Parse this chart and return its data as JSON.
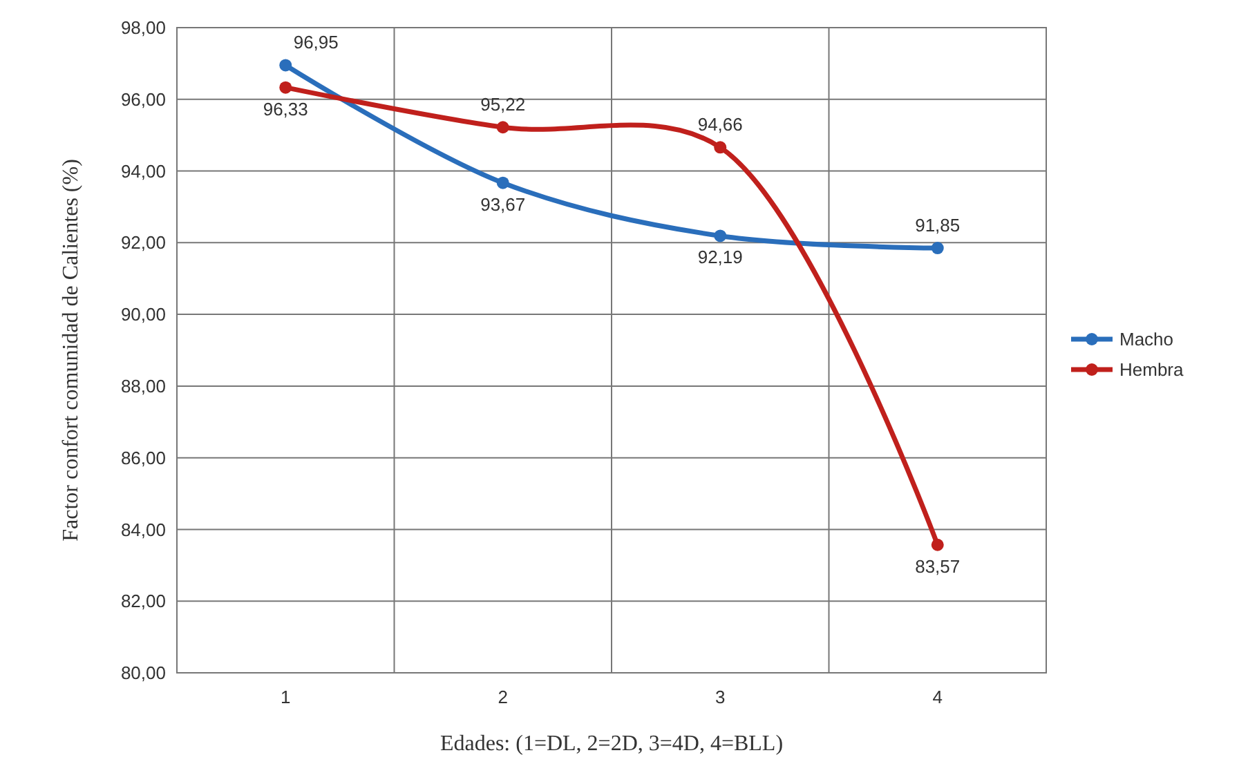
{
  "chart_data": {
    "type": "line",
    "xlabel": "Edades: (1=DL, 2=2D, 3=4D, 4=BLL)",
    "ylabel": "Factor confort comunidad de Calientes (%)",
    "categories": [
      "1",
      "2",
      "3",
      "4"
    ],
    "series": [
      {
        "name": "Macho",
        "color": "#2a6ebb",
        "values": [
          96.95,
          93.67,
          92.19,
          91.85
        ],
        "value_labels": [
          "96,95",
          "93,67",
          "92,19",
          "91,85"
        ]
      },
      {
        "name": "Hembra",
        "color": "#c0201c",
        "values": [
          96.33,
          95.22,
          94.66,
          83.57
        ],
        "value_labels": [
          "96,33",
          "95,22",
          "94,66",
          "83,57"
        ]
      }
    ],
    "ylim": [
      80,
      98
    ],
    "yticks": [
      {
        "value": 80,
        "label": "80,00"
      },
      {
        "value": 82,
        "label": "82,00"
      },
      {
        "value": 84,
        "label": "84,00"
      },
      {
        "value": 86,
        "label": "86,00"
      },
      {
        "value": 88,
        "label": "88,00"
      },
      {
        "value": 90,
        "label": "90,00"
      },
      {
        "value": 92,
        "label": "92,00"
      },
      {
        "value": 94,
        "label": "94,00"
      },
      {
        "value": 96,
        "label": "96,00"
      },
      {
        "value": 98,
        "label": "98,00"
      }
    ],
    "grid": true,
    "legend": "right",
    "marker": "circle",
    "line_style": "solid"
  }
}
